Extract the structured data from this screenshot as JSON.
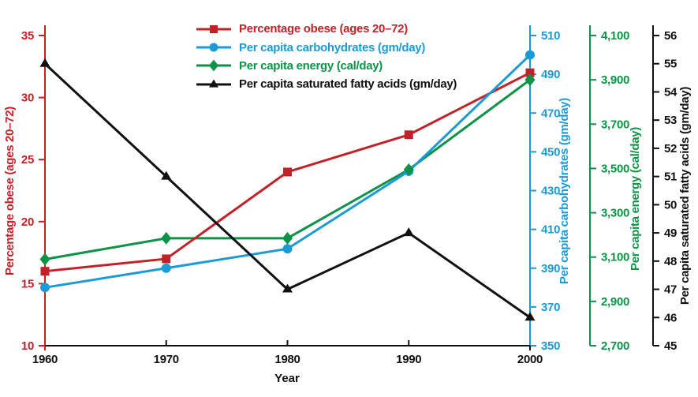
{
  "chart_data": {
    "type": "line",
    "xlabel": "Year",
    "x": [
      1960,
      1970,
      1980,
      1990,
      2000
    ],
    "x_tick_labels": [
      "1960",
      "1970",
      "1980",
      "1990",
      "2000"
    ],
    "grid": false,
    "legend_position": "top-center",
    "axes": [
      {
        "id": "obese",
        "label": "Percentage obese (ages 20–72)",
        "side": "left",
        "min": 10,
        "max": 35,
        "tick_step": 5,
        "tick_labels": [
          "10",
          "15",
          "20",
          "25",
          "30",
          "35"
        ],
        "color": "#c32128"
      },
      {
        "id": "carbs",
        "label": "Per capita carbohydrates (gm/day)",
        "side": "right",
        "min": 350,
        "max": 510,
        "tick_step": 20,
        "tick_labels": [
          "350",
          "370",
          "390",
          "410",
          "430",
          "450",
          "470",
          "490",
          "510"
        ],
        "color": "#1b9bd6"
      },
      {
        "id": "energy",
        "label": "Per capita energy (cal/day)",
        "side": "right",
        "min": 2700,
        "max": 4100,
        "tick_step": 200,
        "tick_labels": [
          "2,700",
          "2,900",
          "3,100",
          "3,300",
          "3,500",
          "3,700",
          "3,900",
          "4,100"
        ],
        "color": "#0c9347"
      },
      {
        "id": "satfat",
        "label": "Per capita saturated fatty acids (gm/day)",
        "side": "right",
        "min": 45,
        "max": 56,
        "tick_step": 1,
        "tick_labels": [
          "45",
          "46",
          "47",
          "48",
          "49",
          "50",
          "51",
          "52",
          "53",
          "54",
          "55",
          "56"
        ],
        "color": "#111111"
      }
    ],
    "series": [
      {
        "name": "Percentage obese (ages 20–72)",
        "axis": "obese",
        "marker": "square",
        "color": "#c32128",
        "values": [
          16,
          17,
          24,
          27,
          32
        ]
      },
      {
        "name": "Per capita carbohydrates (gm/day)",
        "axis": "carbs",
        "marker": "circle",
        "color": "#1b9bd6",
        "values": [
          380,
          390,
          400,
          440,
          500
        ]
      },
      {
        "name": "Per capita energy (cal/day)",
        "axis": "energy",
        "marker": "diamond",
        "color": "#0c9347",
        "values": [
          3090,
          3185,
          3185,
          3495,
          3900
        ]
      },
      {
        "name": "Per capita saturated fatty acids (gm/day)",
        "axis": "satfat",
        "marker": "triangle",
        "color": "#111111",
        "values": [
          55,
          51,
          47,
          49,
          46
        ]
      }
    ]
  }
}
